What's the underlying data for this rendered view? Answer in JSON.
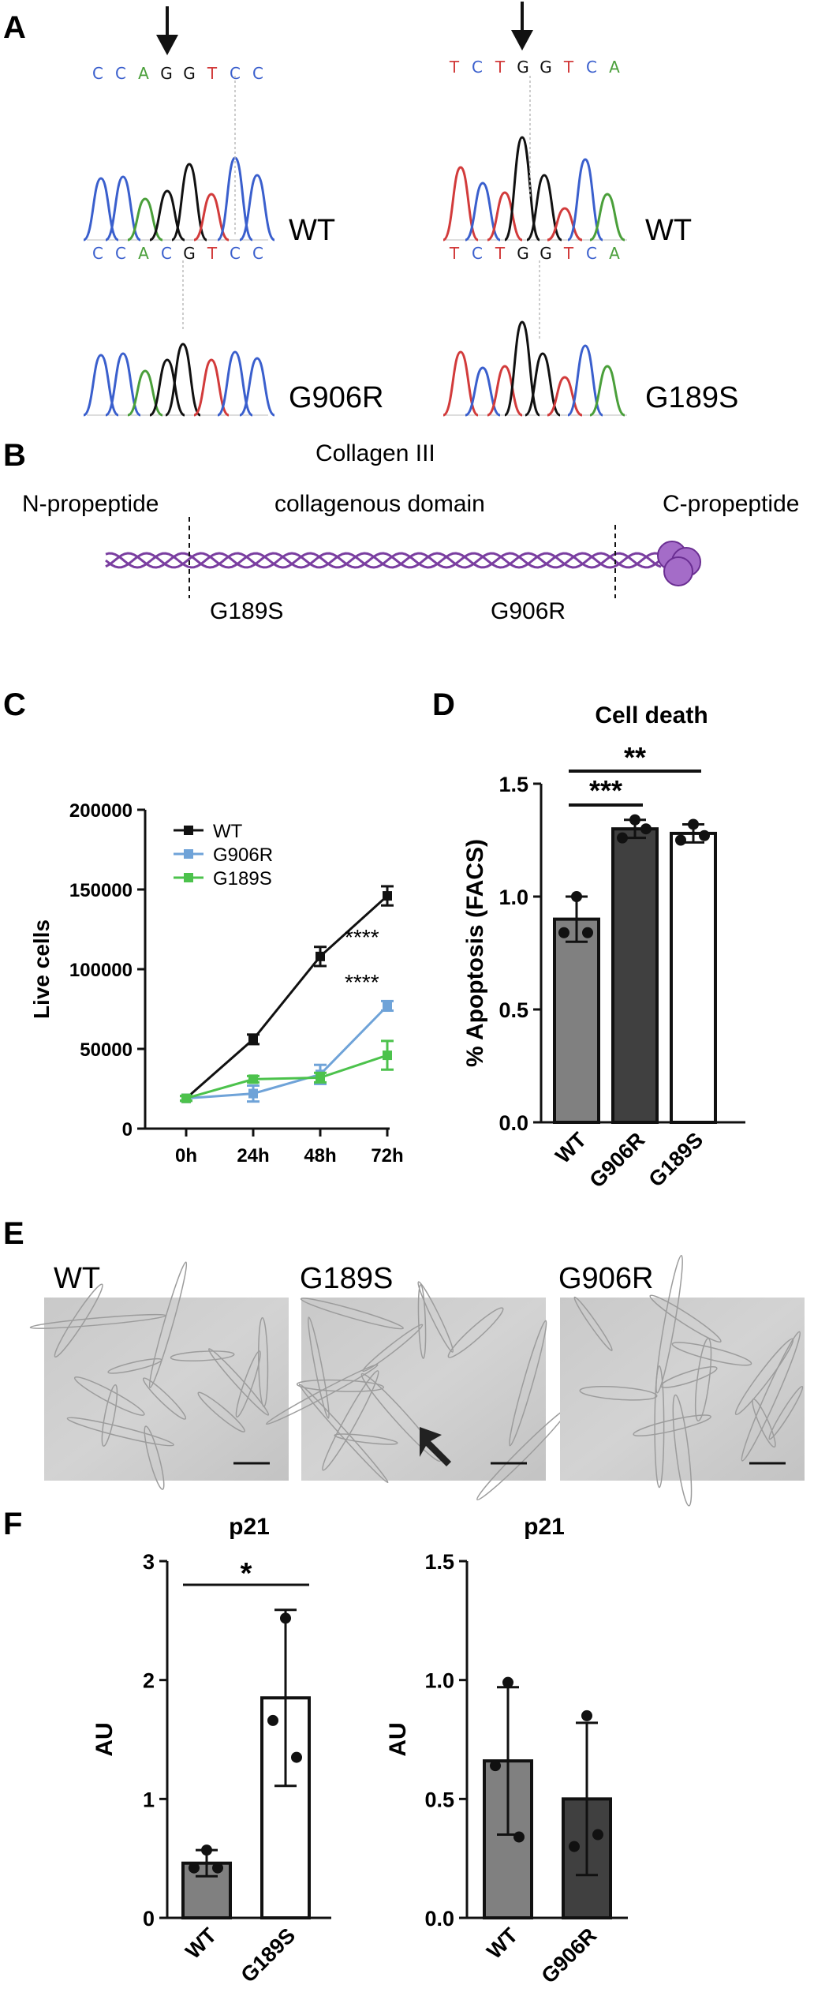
{
  "panels": {
    "A": {
      "letter": "A",
      "seq_left": [
        "C",
        "C",
        "A",
        "G",
        "G",
        "T",
        "C",
        "C"
      ],
      "seq_right": [
        "T",
        "C",
        "T",
        "G",
        "G",
        "T",
        "C",
        "A"
      ],
      "seq_left_mut": [
        "C",
        "C",
        "A",
        "C",
        "G",
        "T",
        "C",
        "C"
      ],
      "seq_right_mut": [
        "T",
        "C",
        "T",
        "G",
        "G",
        "T",
        "C",
        "A"
      ],
      "labels": {
        "wt_left": "WT",
        "wt_right": "WT",
        "mut_left": "G906R",
        "mut_right": "G189S"
      }
    },
    "B": {
      "letter": "B",
      "title": "Collagen III",
      "n_propeptide": "N-propeptide",
      "domain": "collagenous domain",
      "c_propeptide": "C-propeptide",
      "mut1": "G189S",
      "mut2": "G906R"
    },
    "C": {
      "letter": "C",
      "significance1": "****",
      "significance2": "****"
    },
    "D": {
      "letter": "D",
      "sig_a": "**",
      "sig_b": "***"
    },
    "E": {
      "letter": "E",
      "labels": [
        "WT",
        "G189S",
        "G906R"
      ]
    },
    "F": {
      "letter": "F"
    }
  },
  "colors": {
    "WT": "#111111",
    "G906R": "#6fa3d8",
    "G189S": "#4cc24c",
    "trace_A": "#4a9f3a",
    "trace_C": "#3a5fcd",
    "trace_G": "#111111",
    "trace_T": "#d23b3b",
    "helix": "#7a3ea0",
    "bar_wt": "#808080",
    "bar_g906r": "#404040",
    "bar_g189s": "#ffffff"
  },
  "chart_data": [
    {
      "id": "C",
      "type": "line",
      "x": [
        "0h",
        "24h",
        "48h",
        "72h"
      ],
      "ylabel": "Live cells",
      "ylim": [
        0,
        200000
      ],
      "yticks": [
        0,
        50000,
        100000,
        150000,
        200000
      ],
      "legend_placement": "top-left",
      "series": [
        {
          "name": "WT",
          "values": [
            19000,
            56000,
            108000,
            146000
          ],
          "err": [
            1500,
            3000,
            6000,
            6000
          ]
        },
        {
          "name": "G906R",
          "values": [
            19000,
            22000,
            34000,
            77000
          ],
          "err": [
            1500,
            5000,
            6000,
            3000
          ]
        },
        {
          "name": "G189S",
          "values": [
            19000,
            31000,
            32000,
            46000
          ],
          "err": [
            1500,
            2000,
            3000,
            9000
          ]
        }
      ]
    },
    {
      "id": "D",
      "type": "bar",
      "title": "Cell death",
      "ylabel": "% Apoptosis (FACS)",
      "categories": [
        "WT",
        "G906R",
        "G189S"
      ],
      "values": [
        0.9,
        1.3,
        1.28
      ],
      "err": [
        0.1,
        0.04,
        0.04
      ],
      "points": [
        [
          1.0,
          0.84,
          0.84
        ],
        [
          1.34,
          1.26,
          1.3
        ],
        [
          1.32,
          1.25,
          1.27
        ]
      ],
      "ylim": [
        0,
        1.5
      ],
      "yticks": [
        0.0,
        0.5,
        1.0,
        1.5
      ]
    },
    {
      "id": "F1",
      "type": "bar",
      "title": "p21",
      "ylabel": "AU",
      "categories": [
        "WT",
        "G189S"
      ],
      "values": [
        0.46,
        1.85
      ],
      "err": [
        0.11,
        0.74
      ],
      "points": [
        [
          0.57,
          0.42,
          0.42
        ],
        [
          2.52,
          1.66,
          1.35
        ]
      ],
      "significance": "*",
      "ylim": [
        0,
        3
      ],
      "yticks": [
        0,
        1,
        2,
        3
      ]
    },
    {
      "id": "F2",
      "type": "bar",
      "title": "p21",
      "ylabel": "AU",
      "categories": [
        "WT",
        "G906R"
      ],
      "values": [
        0.66,
        0.5
      ],
      "err": [
        0.31,
        0.32
      ],
      "points": [
        [
          0.99,
          0.64,
          0.34
        ],
        [
          0.85,
          0.3,
          0.35
        ]
      ],
      "ylim": [
        0,
        1.5
      ],
      "yticks": [
        0.0,
        0.5,
        1.0,
        1.5
      ]
    }
  ]
}
